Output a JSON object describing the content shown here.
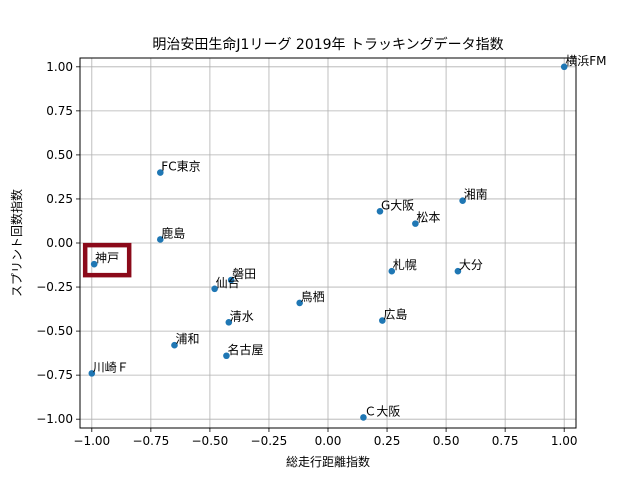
{
  "chart_data": {
    "type": "scatter",
    "title": "明治安田生命J1リーグ 2019年 トラッキングデータ指数",
    "xlabel": "総走行距離指数",
    "ylabel": "スプリント回数指数",
    "xlim": [
      -1.05,
      1.05
    ],
    "ylim": [
      -1.05,
      1.05
    ],
    "xticks": [
      -1.0,
      -0.75,
      -0.5,
      -0.25,
      0.0,
      0.25,
      0.5,
      0.75,
      1.0
    ],
    "yticks": [
      -1.0,
      -0.75,
      -0.5,
      -0.25,
      0.0,
      0.25,
      0.5,
      0.75,
      1.0
    ],
    "xtick_labels": [
      "−1.00",
      "−0.75",
      "−0.50",
      "−0.25",
      "0.00",
      "0.25",
      "0.50",
      "0.75",
      "1.00"
    ],
    "ytick_labels": [
      "−1.00",
      "−0.75",
      "−0.50",
      "−0.25",
      "0.00",
      "0.25",
      "0.50",
      "0.75",
      "1.00"
    ],
    "grid": true,
    "marker_color": "#1f77b4",
    "highlight": {
      "label": "神戸",
      "color": "#8b0a1a"
    },
    "points": [
      {
        "label": "横浜FM",
        "x": 1.0,
        "y": 1.0
      },
      {
        "label": "FC東京",
        "x": -0.71,
        "y": 0.4
      },
      {
        "label": "湘南",
        "x": 0.57,
        "y": 0.24
      },
      {
        "label": "G大阪",
        "x": 0.22,
        "y": 0.18
      },
      {
        "label": "松本",
        "x": 0.37,
        "y": 0.11
      },
      {
        "label": "鹿島",
        "x": -0.71,
        "y": 0.02
      },
      {
        "label": "神戸",
        "x": -0.99,
        "y": -0.12
      },
      {
        "label": "札幌",
        "x": 0.27,
        "y": -0.16
      },
      {
        "label": "大分",
        "x": 0.55,
        "y": -0.16
      },
      {
        "label": "磐田",
        "x": -0.41,
        "y": -0.21
      },
      {
        "label": "仙台",
        "x": -0.48,
        "y": -0.26
      },
      {
        "label": "鳥栖",
        "x": -0.12,
        "y": -0.34
      },
      {
        "label": "清水",
        "x": -0.42,
        "y": -0.45
      },
      {
        "label": "広島",
        "x": 0.23,
        "y": -0.44
      },
      {
        "label": "浦和",
        "x": -0.65,
        "y": -0.58
      },
      {
        "label": "名古屋",
        "x": -0.43,
        "y": -0.64
      },
      {
        "label": "川崎Ｆ",
        "x": -1.0,
        "y": -0.74
      },
      {
        "label": "Ｃ大阪",
        "x": 0.15,
        "y": -0.99
      }
    ]
  }
}
